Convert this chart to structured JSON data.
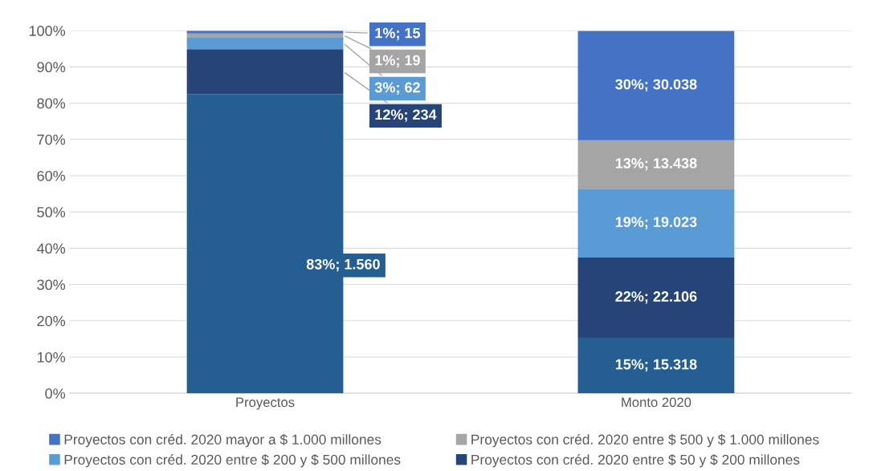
{
  "chart_data": {
    "type": "bar",
    "stacked": true,
    "categories": [
      "Proyectos",
      "Monto 2020"
    ],
    "series": [
      {
        "color": "#255e91",
        "values": [
          82.5,
          15.3
        ],
        "value_labels": [
          "83%; 1.560",
          "15%; 15.318"
        ]
      },
      {
        "name": "Proyectos con créd. 2020 entre $ 50 y $ 200 millones",
        "color": "#264478",
        "values": [
          12.4,
          22.1
        ],
        "value_labels": [
          "12%; 234",
          "22%; 22.106"
        ]
      },
      {
        "name": "Proyectos con créd. 2020 entre $ 200 y $ 500 millones",
        "color": "#5b9bd5",
        "values": [
          3.3,
          19.0
        ],
        "value_labels": [
          "3%; 62",
          "19%; 19.023"
        ]
      },
      {
        "name": "Proyectos con créd. 2020 entre $ 500 y $ 1.000 millones",
        "color": "#a5a5a5",
        "values": [
          1.0,
          13.4
        ],
        "value_labels": [
          "1%; 19",
          "13%; 13.438"
        ]
      },
      {
        "name": "Proyectos con créd. 2020 mayor a $ 1.000 millones",
        "color": "#4472c4",
        "values": [
          0.8,
          30.1
        ],
        "value_labels": [
          "1%; 15",
          "30%; 30.038"
        ]
      }
    ],
    "ylim": [
      0,
      100
    ],
    "yticks": [
      {
        "value": 0,
        "label": "0%"
      },
      {
        "value": 10,
        "label": "10%"
      },
      {
        "value": 20,
        "label": "20%"
      },
      {
        "value": 30,
        "label": "30%"
      },
      {
        "value": 40,
        "label": "40%"
      },
      {
        "value": 50,
        "label": "50%"
      },
      {
        "value": 60,
        "label": "60%"
      },
      {
        "value": 70,
        "label": "70%"
      },
      {
        "value": 80,
        "label": "80%"
      },
      {
        "value": 90,
        "label": "90%"
      },
      {
        "value": 100,
        "label": "100%"
      }
    ],
    "grid": "y",
    "legend": "bottom"
  }
}
